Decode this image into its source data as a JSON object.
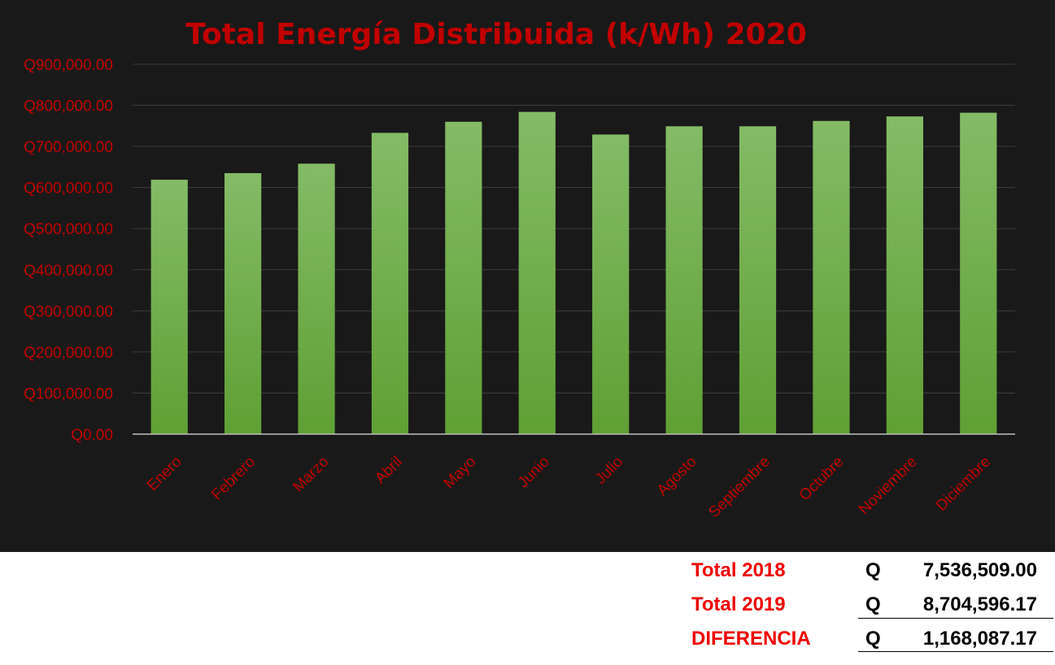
{
  "colors": {
    "background": "#191919",
    "bar_top": "#84bb66",
    "bar_bottom": "#5fa034",
    "text_red": "#c00000",
    "title_red": "#c00000",
    "grid": "#3c3c3c",
    "axis": "#bfbfbf"
  },
  "chart_data": {
    "type": "bar",
    "title": "Total Energía Distribuida (k/Wh) 2020",
    "categories": [
      "Enero",
      "Febrero",
      "Marzo",
      "Abril",
      "Mayo",
      "Junio",
      "Julio",
      "Agosto",
      "Septiembre",
      "Octubre",
      "Noviembre",
      "Diciembre"
    ],
    "values": [
      619000,
      635000,
      658000,
      733000,
      760000,
      784000,
      729000,
      749000,
      749000,
      762000,
      773000,
      782000
    ],
    "ylim": [
      0,
      900000
    ],
    "yticks": [
      0,
      100000,
      200000,
      300000,
      400000,
      500000,
      600000,
      700000,
      800000,
      900000
    ],
    "ytick_labels": [
      "Q0.00",
      "Q100,000.00",
      "Q200,000.00",
      "Q300,000.00",
      "Q400,000.00",
      "Q500,000.00",
      "Q600,000.00",
      "Q700,000.00",
      "Q800,000.00",
      "Q900,000.00"
    ],
    "grid": true,
    "xlabel": "",
    "ylabel": ""
  },
  "totals": [
    {
      "label": "Total 2018",
      "currency": "Q",
      "value": "7,536,509.00"
    },
    {
      "label": "Total 2019",
      "currency": "Q",
      "value": "8,704,596.17"
    },
    {
      "label": "DIFERENCIA",
      "currency": "Q",
      "value": "1,168,087.17"
    }
  ]
}
